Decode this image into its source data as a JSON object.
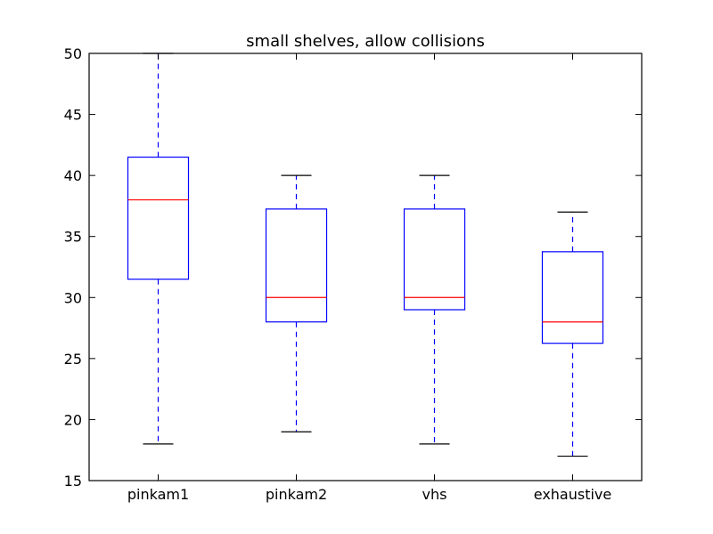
{
  "chart_data": {
    "type": "boxplot",
    "title": "small shelves, allow collisions",
    "xlabel": "",
    "ylabel": "",
    "ylim": [
      15,
      50
    ],
    "yticks": [
      15,
      20,
      25,
      30,
      35,
      40,
      45,
      50
    ],
    "grid": false,
    "categories": [
      "pinkam1",
      "pinkam2",
      "vhs",
      "exhaustive"
    ],
    "boxes": [
      {
        "category": "pinkam1",
        "whisker_low": 18,
        "q1": 31.5,
        "median": 38,
        "q3": 41.5,
        "whisker_high": 50
      },
      {
        "category": "pinkam2",
        "whisker_low": 19,
        "q1": 28,
        "median": 30,
        "q3": 37.25,
        "whisker_high": 40
      },
      {
        "category": "vhs",
        "whisker_low": 18,
        "q1": 29,
        "median": 30,
        "q3": 37.25,
        "whisker_high": 40
      },
      {
        "category": "exhaustive",
        "whisker_low": 17,
        "q1": 26.25,
        "median": 28,
        "q3": 33.75,
        "whisker_high": 37
      }
    ],
    "colors": {
      "box": "#0000ff",
      "whisker": "#0000ff",
      "cap": "#000000",
      "median": "#ff0000",
      "axes": "#000000"
    }
  }
}
